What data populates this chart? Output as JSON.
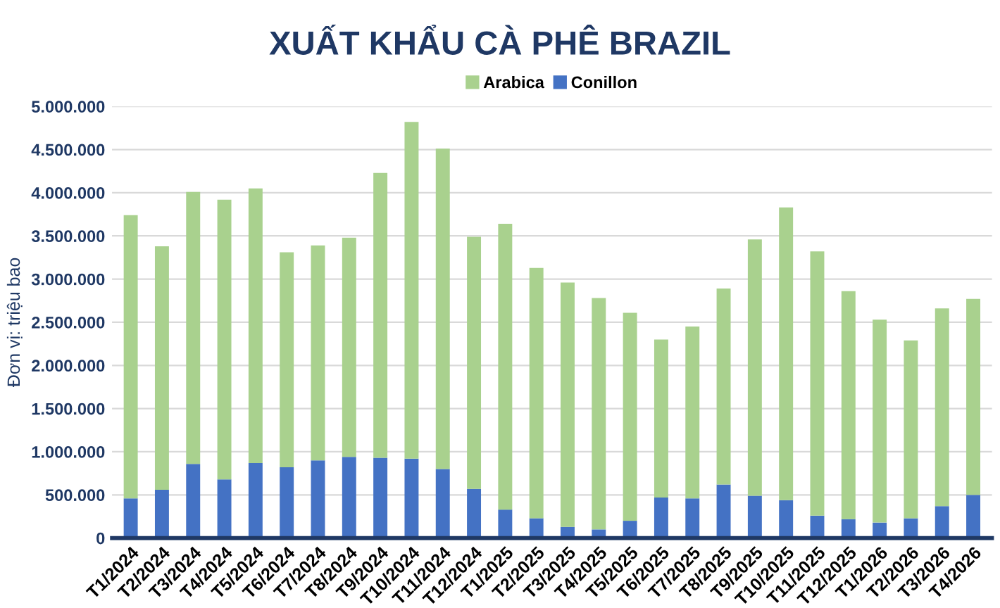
{
  "chart_data": {
    "type": "bar",
    "title": "XUẤT KHẨU CÀ PHÊ BRAZIL",
    "ylabel": "Đơn vị: triệu bao",
    "stacked": true,
    "categories": [
      "T1/2024",
      "T2/2024",
      "T3/2024",
      "T4/2024",
      "T5/2024",
      "T6/2024",
      "T7/2024",
      "T8/2024",
      "T9/2024",
      "T10/2024",
      "T11/2024",
      "T12/2024",
      "T1/2025",
      "T2/2025",
      "T3/2025",
      "T4/2025",
      "T5/2025",
      "T6/2025",
      "T7/2025",
      "T8/2025",
      "T9/2025",
      "T10/2025",
      "T11/2025",
      "T12/2025",
      "T1/2026",
      "T2/2026",
      "T3/2026",
      "T4/2026"
    ],
    "series": [
      {
        "name": "Conillon",
        "color": "#4472c4",
        "values": [
          460000,
          560000,
          860000,
          680000,
          870000,
          820000,
          900000,
          940000,
          930000,
          920000,
          800000,
          570000,
          330000,
          230000,
          130000,
          100000,
          200000,
          470000,
          460000,
          620000,
          490000,
          440000,
          260000,
          220000,
          180000,
          230000,
          370000,
          500000
        ]
      },
      {
        "name": "Arabica",
        "color": "#a9d18e",
        "values": [
          3280000,
          2820000,
          3150000,
          3240000,
          3180000,
          2490000,
          2490000,
          2540000,
          3300000,
          3900000,
          3710000,
          2920000,
          3310000,
          2900000,
          2830000,
          2680000,
          2410000,
          1830000,
          1990000,
          2270000,
          2970000,
          3390000,
          3060000,
          2640000,
          2350000,
          2060000,
          2290000,
          2270000
        ]
      }
    ],
    "ylim": [
      0,
      5000000
    ],
    "yticks": [
      {
        "value": 0,
        "label": "0"
      },
      {
        "value": 500000,
        "label": "500.000"
      },
      {
        "value": 1000000,
        "label": "1.000.000"
      },
      {
        "value": 1500000,
        "label": "1.500.000"
      },
      {
        "value": 2000000,
        "label": "2.000.000"
      },
      {
        "value": 2500000,
        "label": "2.500.000"
      },
      {
        "value": 3000000,
        "label": "3.000.000"
      },
      {
        "value": 3500000,
        "label": "3.500.000"
      },
      {
        "value": 4000000,
        "label": "4.000.000"
      },
      {
        "value": 4500000,
        "label": "4.500.000"
      },
      {
        "value": 5000000,
        "label": "5.000.000"
      }
    ],
    "grid": "y",
    "legend": "top"
  }
}
